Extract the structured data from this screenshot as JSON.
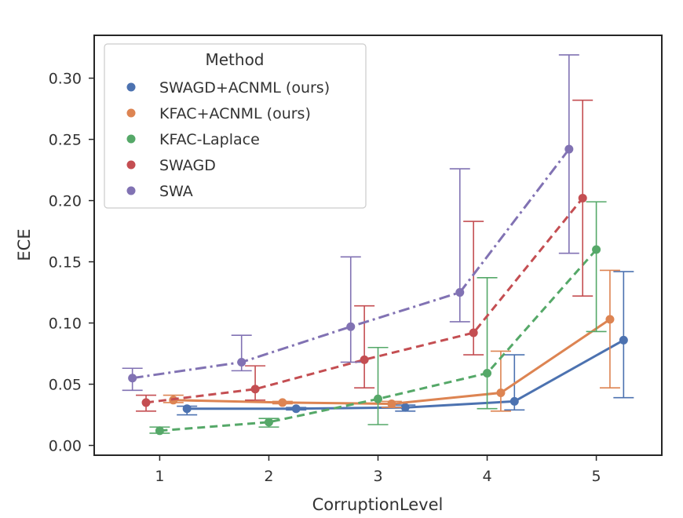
{
  "chart_data": {
    "type": "line",
    "title": "",
    "xlabel": "CorruptionLevel",
    "ylabel": "ECE",
    "x": [
      1,
      2,
      3,
      4,
      5
    ],
    "xticks": [
      "1",
      "2",
      "3",
      "4",
      "5"
    ],
    "yticks": [
      "0.00",
      "0.05",
      "0.10",
      "0.15",
      "0.20",
      "0.25",
      "0.30"
    ],
    "ylim": [
      -0.008,
      0.335
    ],
    "xlim": [
      0.4,
      5.6
    ],
    "grid": false,
    "legend": {
      "title": "Method",
      "placement": "top-left",
      "entries": [
        "SWAGD+ACNML (ours)",
        "KFAC+ACNML (ours)",
        "KFAC-Laplace",
        "SWAGD",
        "SWA"
      ]
    },
    "series": [
      {
        "name": "SWAGD+ACNML (ours)",
        "color": "#4c72b0",
        "dash": "solid",
        "offset": 0.25,
        "values": [
          0.03,
          0.03,
          0.031,
          0.036,
          0.086
        ],
        "lower": [
          0.025,
          0.029,
          0.028,
          0.029,
          0.039
        ],
        "upper": [
          0.032,
          0.031,
          0.033,
          0.074,
          0.142
        ]
      },
      {
        "name": "KFAC+ACNML (ours)",
        "color": "#dd8452",
        "dash": "solid",
        "offset": 0.125,
        "values": [
          0.037,
          0.035,
          0.034,
          0.043,
          0.103
        ],
        "lower": [
          0.035,
          0.034,
          0.031,
          0.028,
          0.047
        ],
        "upper": [
          0.041,
          0.036,
          0.036,
          0.077,
          0.143
        ]
      },
      {
        "name": "KFAC-Laplace",
        "color": "#55a868",
        "dash": "dashed",
        "offset": 0.0,
        "values": [
          0.012,
          0.019,
          0.038,
          0.059,
          0.16
        ],
        "lower": [
          0.01,
          0.015,
          0.017,
          0.03,
          0.093
        ],
        "upper": [
          0.015,
          0.022,
          0.08,
          0.137,
          0.199
        ]
      },
      {
        "name": "SWAGD",
        "color": "#c44e52",
        "dash": "dashed",
        "offset": -0.125,
        "values": [
          0.035,
          0.046,
          0.07,
          0.092,
          0.202
        ],
        "lower": [
          0.028,
          0.037,
          0.047,
          0.074,
          0.122
        ],
        "upper": [
          0.041,
          0.065,
          0.114,
          0.183,
          0.282
        ]
      },
      {
        "name": "SWA",
        "color": "#8172b3",
        "dash": "dashdot",
        "offset": -0.25,
        "values": [
          0.055,
          0.068,
          0.097,
          0.125,
          0.242
        ],
        "lower": [
          0.045,
          0.061,
          0.068,
          0.101,
          0.157
        ],
        "upper": [
          0.063,
          0.09,
          0.154,
          0.226,
          0.319
        ]
      }
    ]
  }
}
